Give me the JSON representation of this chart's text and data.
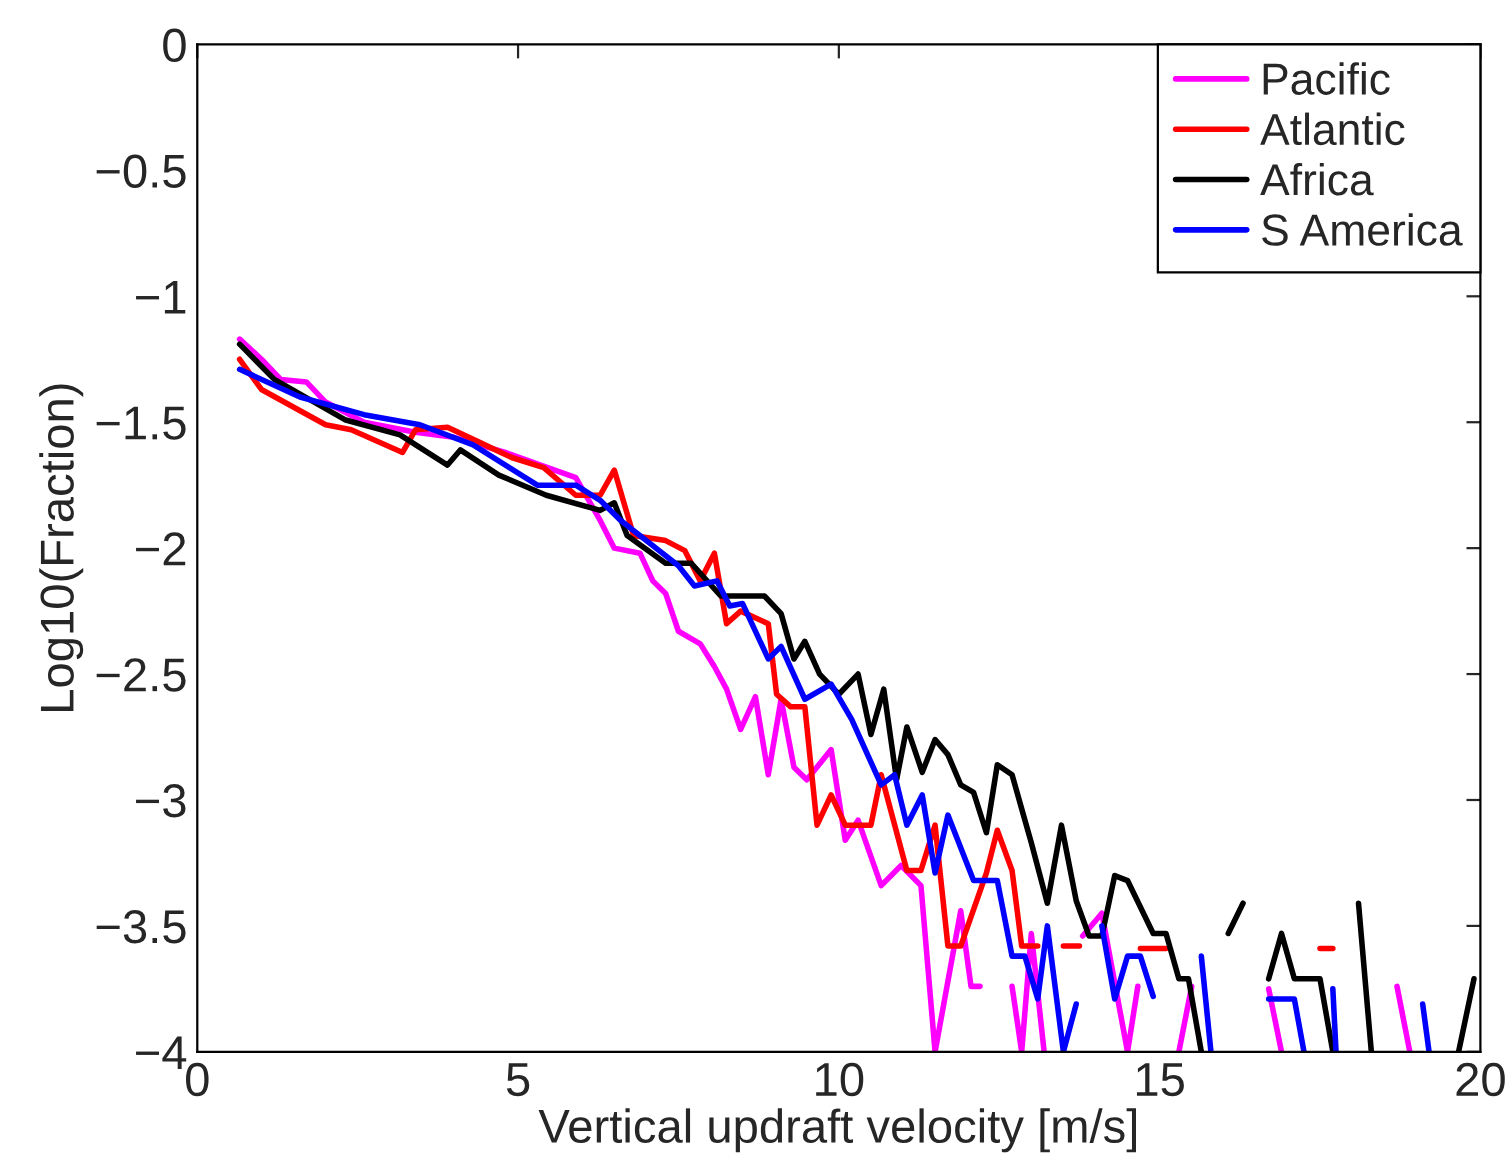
{
  "chart_data": {
    "type": "line",
    "xlabel": "Vertical updraft velocity [m/s]",
    "ylabel": "Log10(Fraction)",
    "xlim": [
      0,
      20
    ],
    "xticks": [
      0,
      5,
      10,
      15,
      20
    ],
    "ylim": [
      -4,
      0
    ],
    "yticks": [
      -4,
      -3.5,
      -3,
      -2.5,
      -2,
      -1.5,
      -1,
      -0.5,
      0
    ],
    "grid": false,
    "legend": "top right",
    "marker": "none",
    "line_style": "solid",
    "series": [
      {
        "name": "Pacific",
        "color": "#ff00ff",
        "x": [
          0.66,
          1.0,
          1.3,
          1.7,
          2.0,
          2.6,
          3.4,
          4.0,
          4.8,
          5.9,
          6.28,
          6.5,
          6.9,
          7.1,
          7.3,
          7.5,
          7.84,
          8.06,
          8.25,
          8.47,
          8.7,
          8.9,
          9.1,
          9.3,
          9.5,
          9.88,
          10.1,
          10.3,
          10.66,
          10.97,
          11.28,
          11.5,
          11.9,
          12.06,
          12.2,
          12.45,
          12.7,
          12.85,
          13.0,
          13.2,
          13.5,
          13.8,
          14.1,
          14.5,
          14.66,
          15.0,
          15.3,
          15.5,
          16.0,
          16.7,
          16.9,
          17.5,
          18.7,
          18.9
        ],
        "values": [
          -1.17,
          -1.25,
          -1.33,
          -1.34,
          -1.42,
          -1.5,
          -1.54,
          -1.56,
          -1.62,
          -1.72,
          -1.89,
          -2.0,
          -2.02,
          -2.13,
          -2.18,
          -2.33,
          -2.38,
          -2.47,
          -2.56,
          -2.72,
          -2.59,
          -2.9,
          -2.6,
          -2.87,
          -2.92,
          -2.8,
          -3.16,
          -3.08,
          -3.34,
          -3.26,
          -3.34,
          -4,
          -3.44,
          -3.74,
          -3.74,
          null,
          -3.74,
          -4,
          -3.53,
          -4,
          null,
          -3.54,
          -3.45,
          -4,
          -3.74,
          null,
          -4,
          -3.74,
          null,
          -3.75,
          -4,
          null,
          -3.74,
          -4
        ]
      },
      {
        "name": "Atlantic",
        "color": "#ff0000",
        "x": [
          0.66,
          1.0,
          2.0,
          2.4,
          3.2,
          3.4,
          3.9,
          4.4,
          4.9,
          5.4,
          5.9,
          6.28,
          6.5,
          6.8,
          7.3,
          7.6,
          7.84,
          8.06,
          8.25,
          8.47,
          8.9,
          9.03,
          9.25,
          9.47,
          9.66,
          9.88,
          10.1,
          10.5,
          10.66,
          11.06,
          11.28,
          11.5,
          11.7,
          11.9,
          12.3,
          12.47,
          12.7,
          12.85,
          13.1,
          13.3,
          13.5,
          13.75,
          14.2,
          14.7,
          15.1,
          16.0,
          17.5,
          17.7
        ],
        "values": [
          -1.25,
          -1.37,
          -1.51,
          -1.53,
          -1.62,
          -1.53,
          -1.52,
          -1.58,
          -1.64,
          -1.68,
          -1.79,
          -1.79,
          -1.69,
          -1.95,
          -1.97,
          -2.01,
          -2.13,
          -2.02,
          -2.3,
          -2.25,
          -2.3,
          -2.58,
          -2.63,
          -2.63,
          -3.1,
          -2.98,
          -3.1,
          -3.1,
          -2.9,
          -3.28,
          -3.28,
          -3.1,
          -3.58,
          -3.58,
          -3.29,
          -3.12,
          -3.28,
          -3.58,
          -3.58,
          null,
          -3.58,
          -3.58,
          null,
          -3.59,
          -3.59,
          null,
          -3.59,
          -3.59
        ]
      },
      {
        "name": "Africa",
        "color": "#000000",
        "x": [
          0.66,
          1.2,
          2.3,
          3.16,
          3.9,
          4.1,
          4.7,
          5.44,
          6.28,
          6.5,
          6.7,
          7.3,
          7.7,
          8.16,
          8.84,
          9.1,
          9.3,
          9.47,
          9.7,
          10.0,
          10.3,
          10.5,
          10.7,
          10.9,
          11.06,
          11.3,
          11.5,
          11.7,
          11.9,
          12.1,
          12.3,
          12.47,
          12.7,
          13.0,
          13.25,
          13.47,
          13.7,
          13.9,
          14.1,
          14.3,
          14.5,
          14.9,
          15.1,
          15.3,
          15.45,
          15.65,
          15.9,
          16.07,
          16.3,
          16.5,
          16.7,
          16.9,
          17.1,
          17.5,
          17.7,
          17.9,
          18.1,
          18.3,
          19.0,
          19.66,
          19.9
        ],
        "values": [
          -1.19,
          -1.33,
          -1.49,
          -1.55,
          -1.67,
          -1.61,
          -1.71,
          -1.79,
          -1.85,
          -1.82,
          -1.95,
          -2.06,
          -2.06,
          -2.19,
          -2.19,
          -2.26,
          -2.44,
          -2.37,
          -2.5,
          -2.58,
          -2.5,
          -2.74,
          -2.56,
          -2.92,
          -2.71,
          -2.89,
          -2.76,
          -2.82,
          -2.94,
          -2.97,
          -3.13,
          -2.86,
          -2.9,
          -3.17,
          -3.41,
          -3.1,
          -3.4,
          -3.54,
          -3.54,
          -3.3,
          -3.32,
          -3.53,
          -3.53,
          -3.71,
          -3.71,
          -4,
          null,
          -3.53,
          -3.41,
          null,
          -3.71,
          -3.53,
          -3.71,
          -3.71,
          -4,
          null,
          -3.41,
          -4,
          null,
          -4,
          -3.71
        ]
      },
      {
        "name": "S America",
        "color": "#0000ff",
        "x": [
          0.66,
          1.6,
          2.6,
          3.47,
          4.3,
          5.3,
          5.9,
          6.28,
          6.6,
          7.1,
          7.5,
          7.75,
          8.1,
          8.3,
          8.5,
          8.9,
          9.1,
          9.47,
          9.88,
          10.2,
          10.66,
          10.87,
          11.06,
          11.3,
          11.5,
          11.7,
          12.1,
          12.47,
          12.7,
          12.9,
          13.1,
          13.25,
          13.5,
          13.7,
          13.9,
          14.1,
          14.3,
          14.5,
          14.7,
          14.9,
          15.3,
          15.65,
          15.8,
          16.3,
          16.7,
          17.1,
          17.25,
          17.5,
          17.7,
          17.75,
          18.5,
          19.1,
          19.2
        ],
        "values": [
          -1.29,
          -1.4,
          -1.47,
          -1.51,
          -1.59,
          -1.75,
          -1.75,
          -1.81,
          -1.89,
          -1.99,
          -2.07,
          -2.15,
          -2.13,
          -2.23,
          -2.22,
          -2.44,
          -2.39,
          -2.6,
          -2.54,
          -2.68,
          -2.94,
          -2.9,
          -3.1,
          -2.98,
          -3.29,
          -3.06,
          -3.32,
          -3.32,
          -3.62,
          -3.62,
          -3.79,
          -3.5,
          -4,
          -3.81,
          null,
          -3.5,
          -3.79,
          -3.62,
          -3.62,
          -3.78,
          null,
          -3.62,
          -4,
          null,
          -3.79,
          -3.79,
          -4,
          null,
          -3.75,
          -4,
          null,
          -3.81,
          -4
        ]
      }
    ]
  }
}
